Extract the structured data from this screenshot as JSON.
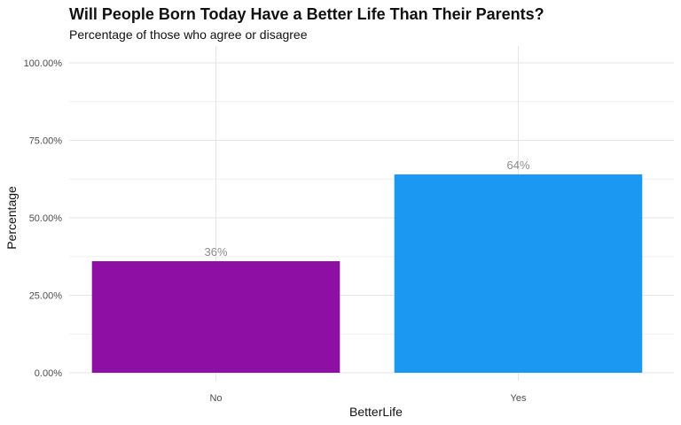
{
  "chart_data": {
    "type": "bar",
    "title": "Will People Born Today Have a Better Life Than Their Parents?",
    "subtitle": "Percentage of those who agree or disagree",
    "xlabel": "BetterLife",
    "ylabel": "Percentage",
    "categories": [
      "No",
      "Yes"
    ],
    "values": [
      0.36,
      0.64
    ],
    "value_labels": [
      "36%",
      "64%"
    ],
    "colors": [
      "#8e0fa3",
      "#1a98f2"
    ],
    "ylim": [
      0,
      1
    ],
    "y_ticks": [
      0,
      0.25,
      0.5,
      0.75,
      1.0
    ],
    "y_tick_labels": [
      "0.00%",
      "25.00%",
      "50.00%",
      "75.00%",
      "100.00%"
    ],
    "grid": true,
    "legend": "none"
  }
}
